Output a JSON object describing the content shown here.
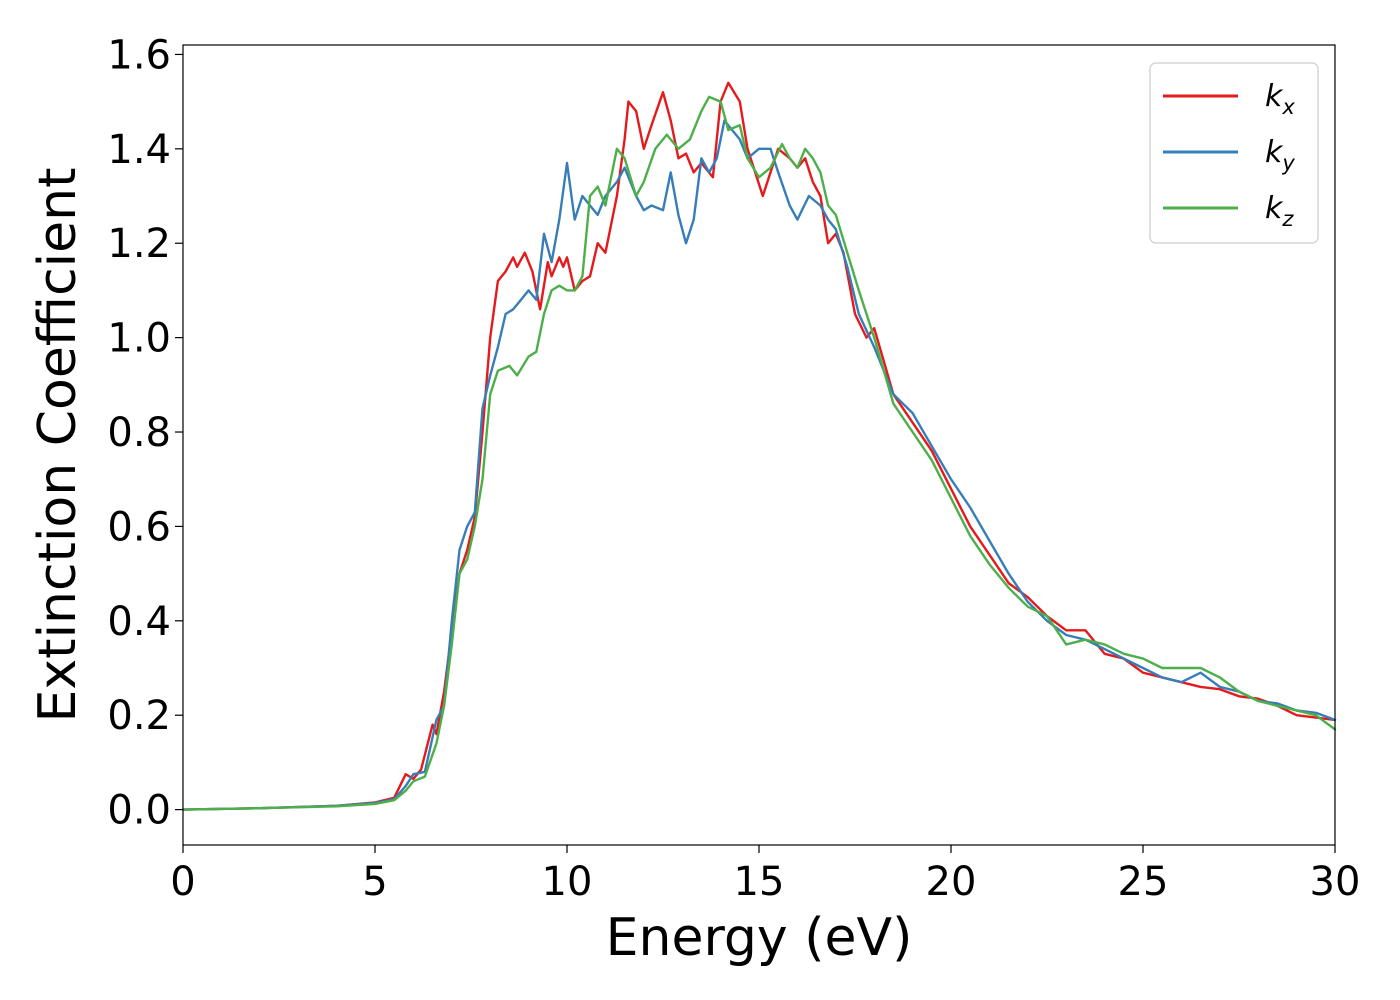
{
  "chart_data": {
    "type": "line",
    "title": "",
    "xlabel": "Energy (eV)",
    "ylabel": "Extinction Coefficient",
    "xlim": [
      0,
      30
    ],
    "ylim": [
      -0.075,
      1.62
    ],
    "xticks": [
      "0",
      "5",
      "10",
      "15",
      "20",
      "25",
      "30"
    ],
    "yticks": [
      "0.0",
      "0.2",
      "0.4",
      "0.6",
      "0.8",
      "1.0",
      "1.2",
      "1.4",
      "1.6"
    ],
    "grid": false,
    "legend_position": "top-right",
    "series": [
      {
        "name": "k_x",
        "label_base": "k",
        "label_sub": "x",
        "color": "#e41a1c",
        "points": [
          [
            0,
            0.0
          ],
          [
            2,
            0.003
          ],
          [
            4,
            0.008
          ],
          [
            5,
            0.015
          ],
          [
            5.5,
            0.025
          ],
          [
            5.8,
            0.075
          ],
          [
            6.0,
            0.065
          ],
          [
            6.2,
            0.085
          ],
          [
            6.5,
            0.18
          ],
          [
            6.6,
            0.16
          ],
          [
            6.8,
            0.25
          ],
          [
            7.0,
            0.38
          ],
          [
            7.2,
            0.5
          ],
          [
            7.4,
            0.55
          ],
          [
            7.6,
            0.62
          ],
          [
            7.8,
            0.8
          ],
          [
            8.0,
            1.0
          ],
          [
            8.2,
            1.12
          ],
          [
            8.4,
            1.14
          ],
          [
            8.6,
            1.17
          ],
          [
            8.7,
            1.15
          ],
          [
            8.9,
            1.18
          ],
          [
            9.1,
            1.14
          ],
          [
            9.3,
            1.06
          ],
          [
            9.5,
            1.16
          ],
          [
            9.6,
            1.13
          ],
          [
            9.8,
            1.17
          ],
          [
            9.9,
            1.15
          ],
          [
            10.0,
            1.17
          ],
          [
            10.2,
            1.1
          ],
          [
            10.4,
            1.12
          ],
          [
            10.6,
            1.13
          ],
          [
            10.8,
            1.2
          ],
          [
            11.0,
            1.18
          ],
          [
            11.3,
            1.3
          ],
          [
            11.5,
            1.42
          ],
          [
            11.6,
            1.5
          ],
          [
            11.8,
            1.48
          ],
          [
            12.0,
            1.4
          ],
          [
            12.2,
            1.45
          ],
          [
            12.5,
            1.52
          ],
          [
            12.7,
            1.46
          ],
          [
            12.9,
            1.38
          ],
          [
            13.1,
            1.39
          ],
          [
            13.3,
            1.35
          ],
          [
            13.5,
            1.37
          ],
          [
            13.8,
            1.34
          ],
          [
            14.0,
            1.5
          ],
          [
            14.2,
            1.54
          ],
          [
            14.5,
            1.5
          ],
          [
            14.7,
            1.4
          ],
          [
            14.9,
            1.35
          ],
          [
            15.1,
            1.3
          ],
          [
            15.3,
            1.35
          ],
          [
            15.5,
            1.4
          ],
          [
            15.8,
            1.38
          ],
          [
            16.0,
            1.36
          ],
          [
            16.2,
            1.38
          ],
          [
            16.4,
            1.33
          ],
          [
            16.6,
            1.3
          ],
          [
            16.8,
            1.2
          ],
          [
            17.0,
            1.22
          ],
          [
            17.2,
            1.18
          ],
          [
            17.5,
            1.05
          ],
          [
            17.8,
            1.0
          ],
          [
            18.0,
            1.02
          ],
          [
            18.5,
            0.88
          ],
          [
            19.0,
            0.82
          ],
          [
            19.5,
            0.76
          ],
          [
            20.0,
            0.68
          ],
          [
            20.5,
            0.6
          ],
          [
            21.0,
            0.54
          ],
          [
            21.5,
            0.48
          ],
          [
            22.0,
            0.45
          ],
          [
            22.5,
            0.41
          ],
          [
            23.0,
            0.38
          ],
          [
            23.5,
            0.38
          ],
          [
            24.0,
            0.33
          ],
          [
            24.5,
            0.32
          ],
          [
            25.0,
            0.29
          ],
          [
            25.5,
            0.28
          ],
          [
            26.0,
            0.27
          ],
          [
            26.5,
            0.26
          ],
          [
            27.0,
            0.255
          ],
          [
            27.5,
            0.24
          ],
          [
            28.0,
            0.235
          ],
          [
            28.5,
            0.22
          ],
          [
            29.0,
            0.2
          ],
          [
            29.5,
            0.195
          ],
          [
            30.0,
            0.19
          ]
        ]
      },
      {
        "name": "k_y",
        "label_base": "k",
        "label_sub": "y",
        "color": "#377eb8",
        "points": [
          [
            0,
            0.0
          ],
          [
            2,
            0.003
          ],
          [
            4,
            0.008
          ],
          [
            5,
            0.014
          ],
          [
            5.5,
            0.022
          ],
          [
            5.8,
            0.05
          ],
          [
            6.0,
            0.075
          ],
          [
            6.3,
            0.08
          ],
          [
            6.6,
            0.19
          ],
          [
            6.8,
            0.22
          ],
          [
            7.0,
            0.4
          ],
          [
            7.2,
            0.55
          ],
          [
            7.4,
            0.6
          ],
          [
            7.6,
            0.63
          ],
          [
            7.8,
            0.85
          ],
          [
            8.0,
            0.92
          ],
          [
            8.2,
            0.98
          ],
          [
            8.4,
            1.05
          ],
          [
            8.6,
            1.06
          ],
          [
            8.8,
            1.08
          ],
          [
            9.0,
            1.1
          ],
          [
            9.2,
            1.08
          ],
          [
            9.4,
            1.22
          ],
          [
            9.6,
            1.16
          ],
          [
            9.8,
            1.25
          ],
          [
            10.0,
            1.37
          ],
          [
            10.2,
            1.25
          ],
          [
            10.4,
            1.3
          ],
          [
            10.6,
            1.28
          ],
          [
            10.8,
            1.26
          ],
          [
            11.0,
            1.3
          ],
          [
            11.3,
            1.33
          ],
          [
            11.5,
            1.36
          ],
          [
            11.8,
            1.3
          ],
          [
            12.0,
            1.27
          ],
          [
            12.2,
            1.28
          ],
          [
            12.5,
            1.27
          ],
          [
            12.7,
            1.35
          ],
          [
            12.9,
            1.26
          ],
          [
            13.1,
            1.2
          ],
          [
            13.3,
            1.25
          ],
          [
            13.5,
            1.38
          ],
          [
            13.7,
            1.35
          ],
          [
            13.9,
            1.38
          ],
          [
            14.1,
            1.46
          ],
          [
            14.3,
            1.44
          ],
          [
            14.5,
            1.42
          ],
          [
            14.7,
            1.38
          ],
          [
            15.0,
            1.4
          ],
          [
            15.3,
            1.4
          ],
          [
            15.5,
            1.35
          ],
          [
            15.8,
            1.28
          ],
          [
            16.0,
            1.25
          ],
          [
            16.3,
            1.3
          ],
          [
            16.6,
            1.28
          ],
          [
            16.8,
            1.25
          ],
          [
            17.0,
            1.23
          ],
          [
            17.3,
            1.15
          ],
          [
            17.6,
            1.05
          ],
          [
            18.0,
            0.98
          ],
          [
            18.5,
            0.88
          ],
          [
            19.0,
            0.84
          ],
          [
            19.5,
            0.77
          ],
          [
            20.0,
            0.7
          ],
          [
            20.5,
            0.64
          ],
          [
            21.0,
            0.57
          ],
          [
            21.5,
            0.5
          ],
          [
            22.0,
            0.44
          ],
          [
            22.5,
            0.4
          ],
          [
            23.0,
            0.37
          ],
          [
            23.5,
            0.36
          ],
          [
            24.0,
            0.34
          ],
          [
            24.5,
            0.32
          ],
          [
            25.0,
            0.3
          ],
          [
            25.5,
            0.28
          ],
          [
            26.0,
            0.27
          ],
          [
            26.5,
            0.29
          ],
          [
            27.0,
            0.26
          ],
          [
            27.5,
            0.25
          ],
          [
            28.0,
            0.23
          ],
          [
            28.5,
            0.225
          ],
          [
            29.0,
            0.21
          ],
          [
            29.5,
            0.205
          ],
          [
            30.0,
            0.19
          ]
        ]
      },
      {
        "name": "k_z",
        "label_base": "k",
        "label_sub": "z",
        "color": "#4daf4a",
        "points": [
          [
            0,
            0.0
          ],
          [
            2,
            0.003
          ],
          [
            4,
            0.007
          ],
          [
            5,
            0.012
          ],
          [
            5.5,
            0.02
          ],
          [
            5.8,
            0.04
          ],
          [
            6.0,
            0.06
          ],
          [
            6.3,
            0.07
          ],
          [
            6.6,
            0.14
          ],
          [
            6.8,
            0.22
          ],
          [
            7.0,
            0.35
          ],
          [
            7.2,
            0.5
          ],
          [
            7.4,
            0.53
          ],
          [
            7.6,
            0.6
          ],
          [
            7.8,
            0.7
          ],
          [
            8.0,
            0.88
          ],
          [
            8.2,
            0.93
          ],
          [
            8.5,
            0.94
          ],
          [
            8.7,
            0.92
          ],
          [
            9.0,
            0.96
          ],
          [
            9.2,
            0.97
          ],
          [
            9.4,
            1.05
          ],
          [
            9.6,
            1.1
          ],
          [
            9.8,
            1.11
          ],
          [
            10.0,
            1.1
          ],
          [
            10.2,
            1.1
          ],
          [
            10.4,
            1.13
          ],
          [
            10.6,
            1.3
          ],
          [
            10.8,
            1.32
          ],
          [
            11.0,
            1.28
          ],
          [
            11.3,
            1.4
          ],
          [
            11.5,
            1.38
          ],
          [
            11.8,
            1.3
          ],
          [
            12.0,
            1.33
          ],
          [
            12.3,
            1.4
          ],
          [
            12.6,
            1.43
          ],
          [
            12.9,
            1.4
          ],
          [
            13.2,
            1.42
          ],
          [
            13.5,
            1.48
          ],
          [
            13.7,
            1.51
          ],
          [
            14.0,
            1.5
          ],
          [
            14.2,
            1.44
          ],
          [
            14.5,
            1.45
          ],
          [
            14.7,
            1.38
          ],
          [
            15.0,
            1.34
          ],
          [
            15.3,
            1.36
          ],
          [
            15.6,
            1.41
          ],
          [
            15.8,
            1.38
          ],
          [
            16.0,
            1.36
          ],
          [
            16.2,
            1.4
          ],
          [
            16.4,
            1.38
          ],
          [
            16.6,
            1.35
          ],
          [
            16.8,
            1.28
          ],
          [
            17.0,
            1.26
          ],
          [
            17.3,
            1.18
          ],
          [
            17.6,
            1.1
          ],
          [
            18.0,
            1.0
          ],
          [
            18.5,
            0.86
          ],
          [
            19.0,
            0.8
          ],
          [
            19.5,
            0.74
          ],
          [
            20.0,
            0.66
          ],
          [
            20.5,
            0.58
          ],
          [
            21.0,
            0.52
          ],
          [
            21.5,
            0.47
          ],
          [
            22.0,
            0.43
          ],
          [
            22.5,
            0.41
          ],
          [
            23.0,
            0.35
          ],
          [
            23.5,
            0.36
          ],
          [
            24.0,
            0.35
          ],
          [
            24.5,
            0.33
          ],
          [
            25.0,
            0.32
          ],
          [
            25.5,
            0.3
          ],
          [
            26.0,
            0.3
          ],
          [
            26.5,
            0.3
          ],
          [
            27.0,
            0.28
          ],
          [
            27.5,
            0.25
          ],
          [
            28.0,
            0.23
          ],
          [
            28.5,
            0.22
          ],
          [
            29.0,
            0.21
          ],
          [
            29.5,
            0.2
          ],
          [
            30.0,
            0.17
          ]
        ]
      }
    ]
  }
}
